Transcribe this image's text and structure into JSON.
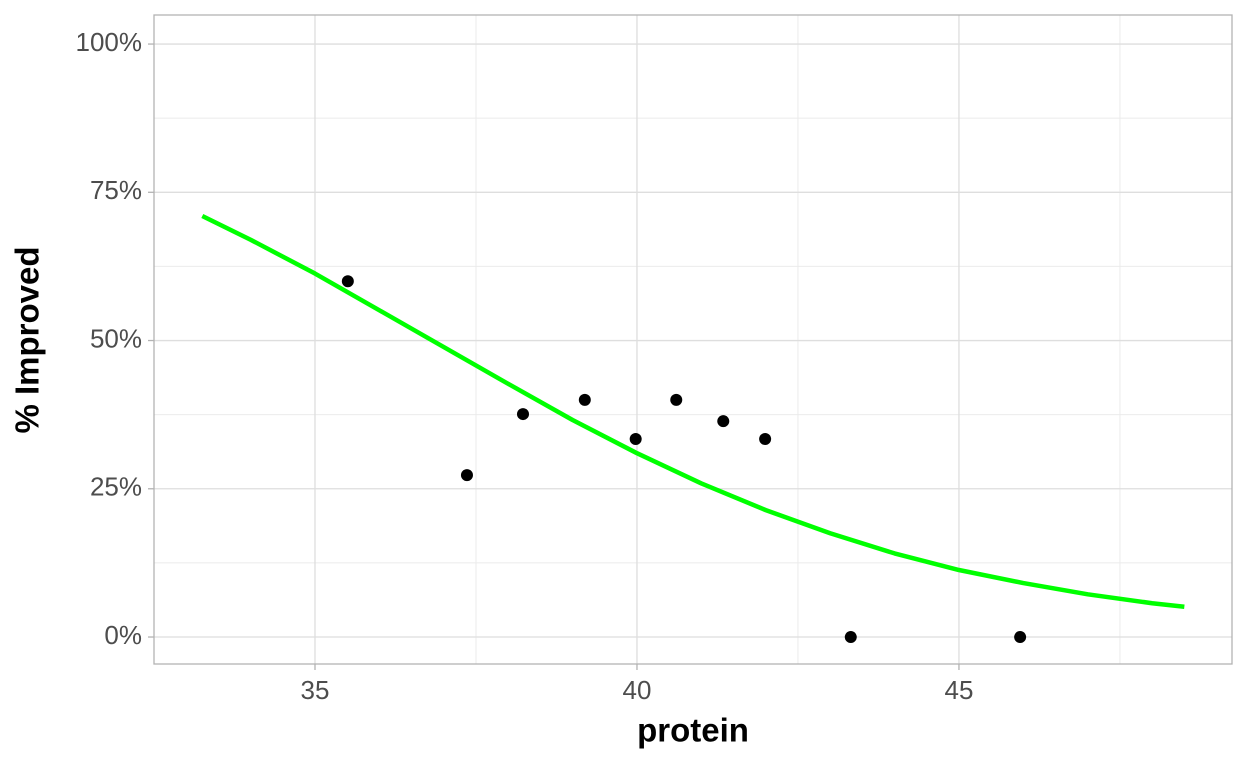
{
  "chart_data": {
    "type": "scatter",
    "x_label": "protein",
    "y_label": "% Improved",
    "xlim": [
      32.5,
      49.24
    ],
    "ylim": [
      -4.55,
      104.9
    ],
    "xticks": [
      35,
      40,
      45
    ],
    "yticks": [
      {
        "value": 0,
        "label": "0%"
      },
      {
        "value": 25,
        "label": "25%"
      },
      {
        "value": 50,
        "label": "50%"
      },
      {
        "value": 75,
        "label": "75%"
      },
      {
        "value": 100,
        "label": "100%"
      }
    ],
    "x_minor_grid": [
      37.5,
      42.5,
      47.5
    ],
    "y_minor_grid": [
      12.5,
      37.5,
      62.5,
      87.5
    ],
    "grid": true,
    "series": [
      {
        "type": "scatter",
        "color": "#000000",
        "x": [
          35.51,
          37.36,
          38.23,
          39.19,
          39.98,
          40.61,
          41.34,
          41.99,
          43.32,
          45.95
        ],
        "values": [
          60.0,
          27.3,
          37.6,
          40.0,
          33.4,
          40.0,
          36.4,
          33.4,
          0,
          0
        ]
      },
      {
        "type": "line",
        "color": "#00ff00",
        "x": [
          33.25,
          34,
          35,
          36,
          37,
          38,
          39,
          40,
          41,
          42,
          43,
          44,
          45,
          46,
          47,
          48,
          48.5
        ],
        "values": [
          71.0,
          67.0,
          61.3,
          55.1,
          48.9,
          42.7,
          36.6,
          31.0,
          25.9,
          21.4,
          17.5,
          14.1,
          11.3,
          9.1,
          7.2,
          5.7,
          5.1
        ]
      }
    ]
  }
}
